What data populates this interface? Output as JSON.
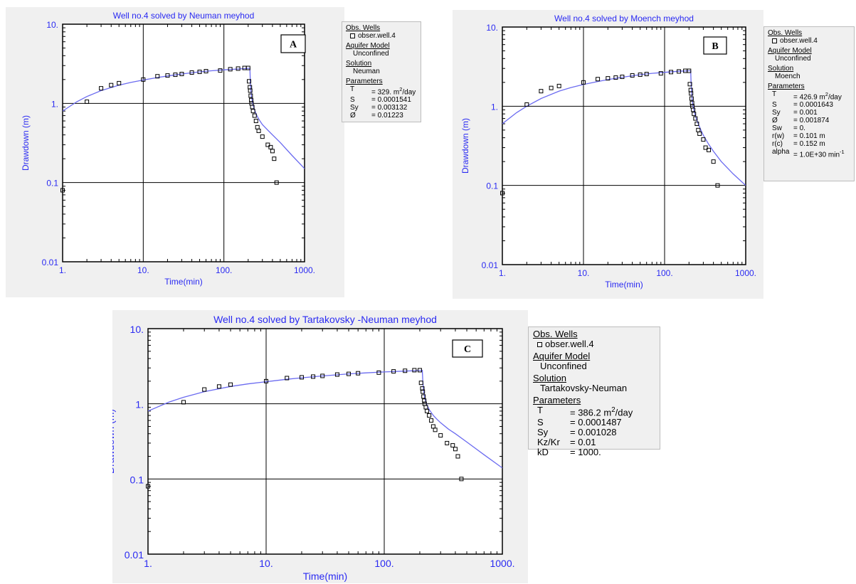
{
  "colors": {
    "title": "#2a2af2",
    "axis_text": "#2a2af2",
    "curve": "#6b6bf0",
    "marker": "#000000",
    "grid": "#000000",
    "panel_bg": "#f0f0f0"
  },
  "chart_data": [
    {
      "id": "A",
      "type": "scatter",
      "title": "Well no.4 solved by Neuman meyhod",
      "panel_label": "A",
      "xlabel": "Time(min)",
      "ylabel": "Drawdown (m)",
      "x_scale": "log",
      "y_scale": "log",
      "xlim": [
        1,
        1000
      ],
      "ylim": [
        0.01,
        10
      ],
      "x_ticks": [
        "1.",
        "10.",
        "100.",
        "1000."
      ],
      "y_ticks": [
        "0.01",
        "0.1",
        "1.",
        "10."
      ],
      "grid": true,
      "legend_position": "right",
      "observed": {
        "x": [
          1,
          2,
          3,
          4,
          5,
          10,
          15,
          20,
          25,
          30,
          40,
          50,
          60,
          90,
          120,
          150,
          180,
          200,
          205,
          210,
          212,
          215,
          218,
          220,
          225,
          230,
          240,
          250,
          260,
          270,
          300,
          350,
          380,
          400,
          420,
          450
        ],
        "y": [
          0.08,
          1.05,
          1.55,
          1.7,
          1.8,
          2.0,
          2.2,
          2.25,
          2.3,
          2.35,
          2.45,
          2.5,
          2.55,
          2.6,
          2.7,
          2.75,
          2.8,
          2.8,
          1.9,
          1.6,
          1.45,
          1.25,
          1.1,
          1.0,
          0.9,
          0.8,
          0.7,
          0.6,
          0.5,
          0.45,
          0.38,
          0.3,
          0.28,
          0.25,
          0.2,
          0.1
        ]
      },
      "fitted_curve": {
        "x": [
          1,
          1.5,
          2,
          3,
          5,
          7,
          10,
          15,
          20,
          30,
          50,
          70,
          100,
          150,
          200,
          210,
          212,
          215,
          220,
          230,
          240,
          260,
          280,
          300,
          350,
          400,
          500,
          700,
          1000
        ],
        "y": [
          0.8,
          1.05,
          1.22,
          1.45,
          1.7,
          1.84,
          1.97,
          2.12,
          2.22,
          2.35,
          2.5,
          2.58,
          2.65,
          2.72,
          2.77,
          2.78,
          2.0,
          1.55,
          1.2,
          0.95,
          0.82,
          0.68,
          0.6,
          0.54,
          0.46,
          0.4,
          0.32,
          0.22,
          0.15
        ]
      },
      "legend": {
        "obs_header": "Obs. Wells",
        "obs_entry": "obser.well.4",
        "aquifer_header": "Aquifer Model",
        "aquifer_value": "Unconfined",
        "solution_header": "Solution",
        "solution_value": "Neuman",
        "params_header": "Parameters",
        "params": [
          {
            "name": "T",
            "value": "= 329. m",
            "sup": "2",
            "after": "/day"
          },
          {
            "name": "S",
            "value": "= 0.0001541",
            "sup": "",
            "after": ""
          },
          {
            "name": "Sy",
            "value": "= 0.003132",
            "sup": "",
            "after": ""
          },
          {
            "name": "Ø",
            "value": "= 0.01223",
            "sup": "",
            "after": ""
          }
        ]
      }
    },
    {
      "id": "B",
      "type": "scatter",
      "title": "Well no.4 solved by Moench meyhod",
      "panel_label": "B",
      "xlabel": "Time(min)",
      "ylabel": "Drawdown (m)",
      "x_scale": "log",
      "y_scale": "log",
      "xlim": [
        1,
        1000
      ],
      "ylim": [
        0.01,
        10
      ],
      "x_ticks": [
        "1.",
        "10.",
        "100.",
        "1000."
      ],
      "y_ticks": [
        "0.01",
        "0.1",
        "1.",
        "10."
      ],
      "grid": true,
      "legend_position": "right",
      "observed": {
        "x": [
          1,
          2,
          3,
          4,
          5,
          10,
          15,
          20,
          25,
          30,
          40,
          50,
          60,
          90,
          120,
          150,
          180,
          200,
          205,
          210,
          212,
          215,
          218,
          220,
          225,
          230,
          240,
          250,
          260,
          270,
          300,
          320,
          350,
          400,
          450
        ],
        "y": [
          0.08,
          1.05,
          1.55,
          1.7,
          1.8,
          2.0,
          2.2,
          2.25,
          2.3,
          2.35,
          2.45,
          2.5,
          2.55,
          2.6,
          2.7,
          2.75,
          2.8,
          2.8,
          1.9,
          1.6,
          1.45,
          1.25,
          1.1,
          1.0,
          0.9,
          0.8,
          0.7,
          0.6,
          0.5,
          0.45,
          0.38,
          0.3,
          0.28,
          0.2,
          0.1
        ]
      },
      "fitted_curve": {
        "x": [
          1,
          1.5,
          2,
          3,
          5,
          7,
          10,
          15,
          20,
          30,
          50,
          70,
          100,
          150,
          200,
          210,
          212,
          215,
          220,
          230,
          240,
          260,
          280,
          300,
          350,
          400,
          500,
          700,
          1000
        ],
        "y": [
          0.6,
          0.83,
          1.0,
          1.25,
          1.55,
          1.72,
          1.88,
          2.05,
          2.17,
          2.32,
          2.5,
          2.6,
          2.68,
          2.76,
          2.8,
          2.8,
          2.0,
          1.5,
          1.15,
          0.9,
          0.75,
          0.6,
          0.5,
          0.43,
          0.33,
          0.27,
          0.2,
          0.14,
          0.1
        ]
      },
      "legend": {
        "obs_header": "Obs. Wells",
        "obs_entry": "obser.well.4",
        "aquifer_header": "Aquifer Model",
        "aquifer_value": "Unconfined",
        "solution_header": "Solution",
        "solution_value": "Moench",
        "params_header": "Parameters",
        "params": [
          {
            "name": "T",
            "value": "= 426.9 m",
            "sup": "2",
            "after": "/day"
          },
          {
            "name": "S",
            "value": "= 0.0001643",
            "sup": "",
            "after": ""
          },
          {
            "name": "Sy",
            "value": "= 0.001",
            "sup": "",
            "after": ""
          },
          {
            "name": "Ø",
            "value": "= 0.001874",
            "sup": "",
            "after": ""
          },
          {
            "name": "Sw",
            "value": "= 0.",
            "sup": "",
            "after": ""
          },
          {
            "name": "r(w)",
            "value": "= 0.101 m",
            "sup": "",
            "after": ""
          },
          {
            "name": "r(c)",
            "value": "= 0.152 m",
            "sup": "",
            "after": ""
          },
          {
            "name": "alpha",
            "value": "= 1.0E+30 min",
            "sup": "-1",
            "after": ""
          }
        ]
      }
    },
    {
      "id": "C",
      "type": "scatter",
      "title": "Well no.4 solved by Tartakovsky -Neuman meyhod",
      "panel_label": "C",
      "xlabel": "Time(min)",
      "ylabel": "Drawdown (m)",
      "x_scale": "log",
      "y_scale": "log",
      "xlim": [
        1,
        1000
      ],
      "ylim": [
        0.01,
        10
      ],
      "x_ticks": [
        "1.",
        "10.",
        "100.",
        "1000."
      ],
      "y_ticks": [
        "0.01",
        "0.1",
        "1.",
        "10."
      ],
      "grid": true,
      "legend_position": "right",
      "observed": {
        "x": [
          1,
          2,
          3,
          4,
          5,
          10,
          15,
          20,
          25,
          30,
          40,
          50,
          60,
          90,
          120,
          150,
          180,
          200,
          205,
          210,
          212,
          215,
          218,
          220,
          225,
          230,
          240,
          250,
          260,
          270,
          300,
          340,
          380,
          400,
          420,
          450
        ],
        "y": [
          0.08,
          1.05,
          1.55,
          1.7,
          1.8,
          2.0,
          2.2,
          2.25,
          2.3,
          2.35,
          2.45,
          2.5,
          2.55,
          2.6,
          2.7,
          2.75,
          2.8,
          2.8,
          1.9,
          1.6,
          1.45,
          1.25,
          1.1,
          1.0,
          0.9,
          0.8,
          0.7,
          0.6,
          0.5,
          0.45,
          0.38,
          0.3,
          0.28,
          0.25,
          0.2,
          0.1
        ]
      },
      "fitted_curve": {
        "x": [
          1,
          1.5,
          2,
          3,
          5,
          7,
          10,
          15,
          20,
          30,
          50,
          70,
          100,
          150,
          200,
          210,
          212,
          215,
          220,
          230,
          240,
          260,
          280,
          300,
          350,
          400,
          500,
          700,
          1000
        ],
        "y": [
          0.8,
          1.05,
          1.22,
          1.45,
          1.7,
          1.84,
          1.97,
          2.12,
          2.22,
          2.35,
          2.5,
          2.58,
          2.65,
          2.72,
          2.77,
          2.78,
          2.0,
          1.55,
          1.2,
          0.97,
          0.84,
          0.7,
          0.62,
          0.56,
          0.46,
          0.4,
          0.31,
          0.21,
          0.14
        ]
      },
      "legend": {
        "obs_header": "Obs. Wells",
        "obs_entry": "obser.well.4",
        "aquifer_header": "Aquifer Model",
        "aquifer_value": "Unconfined",
        "solution_header": "Solution",
        "solution_value": "Tartakovsky-Neuman",
        "params_header": "Parameters",
        "params": [
          {
            "name": "T",
            "value": "= 386.2 m",
            "sup": "2",
            "after": "/day"
          },
          {
            "name": "S",
            "value": "= 0.0001487",
            "sup": "",
            "after": ""
          },
          {
            "name": "Sy",
            "value": "= 0.001028",
            "sup": "",
            "after": ""
          },
          {
            "name": "Kz/Kr",
            "value": "= 0.01",
            "sup": "",
            "after": ""
          },
          {
            "name": "kD",
            "value": "= 1000.",
            "sup": "",
            "after": ""
          }
        ]
      }
    }
  ]
}
